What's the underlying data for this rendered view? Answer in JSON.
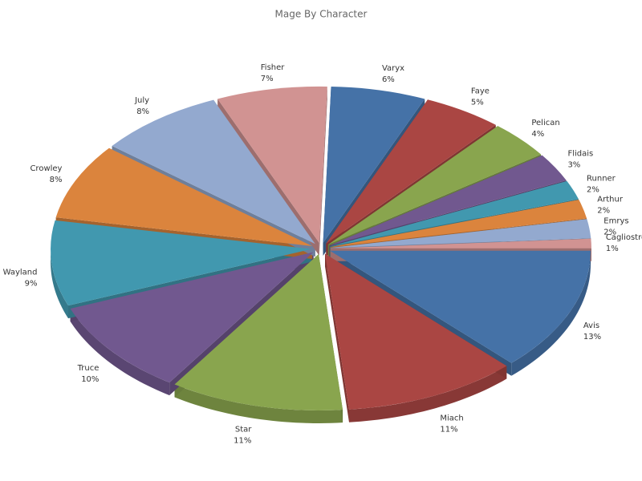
{
  "chart_data": {
    "type": "pie",
    "title": "Mage By Character",
    "categories": [
      "Avis",
      "Miach",
      "Star",
      "Truce",
      "Wayland",
      "Crowley",
      "July",
      "Fisher",
      "Varyx",
      "Faye",
      "Pelican",
      "Flidais",
      "Runner",
      "Arthur",
      "Emrys",
      "Cagliostro"
    ],
    "values": [
      13,
      11,
      11,
      10,
      9,
      8,
      8,
      7,
      6,
      5,
      4,
      3,
      2,
      2,
      2,
      1
    ],
    "value_labels": [
      "13%",
      "11%",
      "11%",
      "10%",
      "9%",
      "8%",
      "8%",
      "7%",
      "6%",
      "5%",
      "4%",
      "3%",
      "2%",
      "2%",
      "2%",
      "1%"
    ],
    "colors": [
      "#4572a7",
      "#aa4643",
      "#89a54e",
      "#71588f",
      "#4198af",
      "#db843d",
      "#93a9cf",
      "#d19392",
      "#4572a7",
      "#aa4643",
      "#89a54e",
      "#71588f",
      "#4198af",
      "#db843d",
      "#93a9cf",
      "#d19392"
    ]
  }
}
